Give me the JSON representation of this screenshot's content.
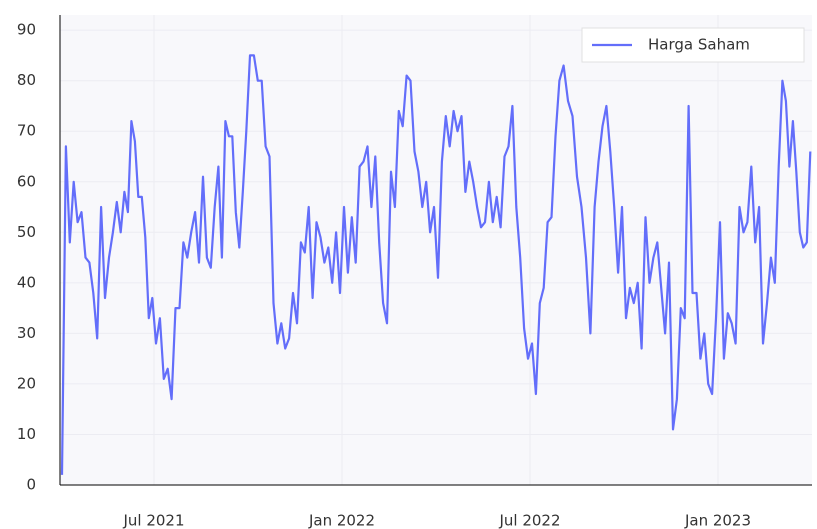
{
  "chart_data": {
    "type": "line",
    "x": [
      "2021-04",
      "2021-04",
      "2021-04",
      "2021-04",
      "2021-04",
      "2021-04",
      "2021-04",
      "2021-04",
      "2021-05",
      "2021-05",
      "2021-05",
      "2021-05",
      "2021-05",
      "2021-05",
      "2021-05",
      "2021-05",
      "2021-06",
      "2021-06",
      "2021-06",
      "2021-06",
      "2021-06",
      "2021-06",
      "2021-06",
      "2021-06",
      "2021-06",
      "2021-07",
      "2021-07",
      "2021-07",
      "2021-07",
      "2021-07",
      "2021-07",
      "2021-07",
      "2021-07",
      "2021-08",
      "2021-08",
      "2021-08",
      "2021-08",
      "2021-08",
      "2021-08",
      "2021-08",
      "2021-08",
      "2021-09",
      "2021-09",
      "2021-09",
      "2021-09",
      "2021-09",
      "2021-09",
      "2021-09",
      "2021-09",
      "2021-09",
      "2021-10",
      "2021-10",
      "2021-10",
      "2021-10",
      "2021-10",
      "2021-10",
      "2021-10",
      "2021-10",
      "2021-11",
      "2021-11",
      "2021-11",
      "2021-11",
      "2021-11",
      "2021-11",
      "2021-11",
      "2021-11",
      "2021-12",
      "2021-12",
      "2021-12",
      "2021-12",
      "2021-12",
      "2021-12",
      "2021-12",
      "2021-12",
      "2022-01",
      "2022-01",
      "2022-01",
      "2022-01",
      "2022-01",
      "2022-01",
      "2022-01",
      "2022-01",
      "2022-02",
      "2022-02",
      "2022-02",
      "2022-02",
      "2022-02",
      "2022-02",
      "2022-02",
      "2022-02",
      "2022-03",
      "2022-03",
      "2022-03",
      "2022-03",
      "2022-03",
      "2022-03",
      "2022-03",
      "2022-03",
      "2022-04",
      "2022-04",
      "2022-04",
      "2022-04",
      "2022-04",
      "2022-04",
      "2022-04",
      "2022-04",
      "2022-05",
      "2022-05",
      "2022-05",
      "2022-05",
      "2022-05",
      "2022-05",
      "2022-05",
      "2022-05",
      "2022-06",
      "2022-06",
      "2022-06",
      "2022-06",
      "2022-06",
      "2022-06",
      "2022-06",
      "2022-06",
      "2022-07",
      "2022-07",
      "2022-07",
      "2022-07",
      "2022-07",
      "2022-07",
      "2022-07",
      "2022-07",
      "2022-08",
      "2022-08",
      "2022-08",
      "2022-08",
      "2022-08",
      "2022-08",
      "2022-08",
      "2022-09",
      "2022-09",
      "2022-09",
      "2022-09",
      "2022-09",
      "2022-09",
      "2022-09",
      "2022-09",
      "2022-10",
      "2022-10",
      "2022-10",
      "2022-10",
      "2022-10",
      "2022-10",
      "2022-10",
      "2022-10",
      "2022-11",
      "2022-11",
      "2022-11",
      "2022-11",
      "2022-11",
      "2022-11",
      "2022-11",
      "2022-11",
      "2022-12",
      "2022-12",
      "2022-12",
      "2022-12",
      "2022-12",
      "2022-12",
      "2022-12",
      "2022-12",
      "2023-01",
      "2023-01",
      "2023-01",
      "2023-01",
      "2023-01",
      "2023-01",
      "2023-01",
      "2023-01",
      "2023-02",
      "2023-02",
      "2023-02",
      "2023-02",
      "2023-02",
      "2023-02",
      "2023-02",
      "2023-02",
      "2023-03",
      "2023-03",
      "2023-03",
      "2023-03",
      "2023-03",
      "2023-03",
      "2023-03",
      "2023-03",
      "2023-03"
    ],
    "series": [
      {
        "name": "Harga Saham",
        "color": "#636efa",
        "values": [
          2,
          67,
          48,
          60,
          52,
          54,
          45,
          44,
          38,
          29,
          55,
          37,
          45,
          50,
          56,
          50,
          58,
          54,
          72,
          68,
          57,
          57,
          49,
          33,
          37,
          28,
          33,
          21,
          23,
          17,
          35,
          35,
          48,
          45,
          50,
          54,
          44,
          61,
          45,
          43,
          55,
          63,
          45,
          72,
          69,
          69,
          54,
          47,
          58,
          70,
          85,
          85,
          80,
          80,
          67,
          65,
          36,
          28,
          32,
          27,
          29,
          38,
          32,
          48,
          46,
          55,
          37,
          52,
          49,
          44,
          47,
          40,
          50,
          38,
          55,
          42,
          53,
          44,
          63,
          64,
          67,
          55,
          65,
          48,
          36,
          32,
          62,
          55,
          74,
          71,
          81,
          80,
          66,
          62,
          55,
          60,
          50,
          55,
          41,
          64,
          73,
          67,
          74,
          70,
          73,
          58,
          64,
          60,
          55,
          51,
          52,
          60,
          52,
          57,
          51,
          65,
          67,
          75,
          55,
          45,
          31,
          25,
          28,
          18,
          36,
          39,
          52,
          53,
          69,
          80,
          83,
          76,
          73,
          61,
          55,
          45,
          30,
          55,
          64,
          71,
          75,
          66,
          55,
          42,
          55,
          33,
          39,
          36,
          40,
          27,
          53,
          40,
          45,
          48,
          39,
          30,
          44,
          11,
          17,
          35,
          33,
          75,
          38,
          38,
          25,
          30,
          20,
          18,
          33,
          52,
          25,
          34,
          32,
          28,
          55,
          50,
          52,
          63,
          48,
          55,
          28,
          36,
          45,
          40,
          63,
          80,
          76,
          63,
          72,
          62,
          50,
          47,
          48,
          66
        ]
      }
    ],
    "xlim": [
      "2021-04",
      "2023-04"
    ],
    "xticks": [
      {
        "value": "2021-07",
        "label": "Jul 2021"
      },
      {
        "value": "2022-01",
        "label": "Jan 2022"
      },
      {
        "value": "2022-07",
        "label": "Jul 2022"
      },
      {
        "value": "2023-01",
        "label": "Jan 2023"
      }
    ],
    "ylim": [
      0,
      93
    ],
    "yticks": [
      0,
      10,
      20,
      30,
      40,
      50,
      60,
      70,
      80,
      90
    ],
    "grid": true,
    "legend": "top-right"
  }
}
